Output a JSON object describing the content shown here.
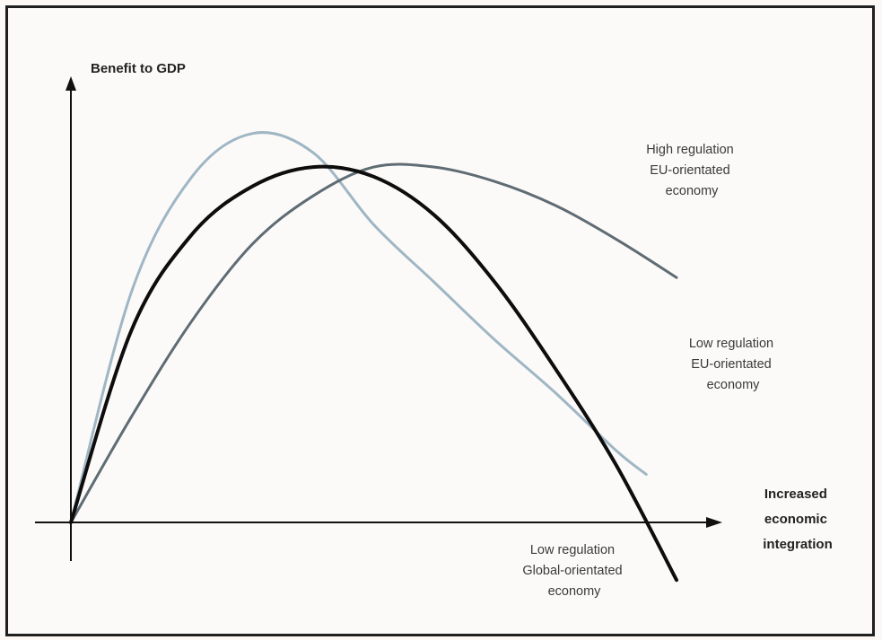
{
  "chart_data": {
    "type": "line",
    "ylabel": "Benefit to GDP",
    "xlabel_lines": [
      "Increased",
      "economic",
      "integration"
    ],
    "axis_ticks": "none",
    "grid": false,
    "legend": "none",
    "x_range": [
      0,
      100
    ],
    "y_range": [
      -12,
      90
    ],
    "series": [
      {
        "annotation_lines": [
          "Low regulation",
          "EU-orientated",
          "economy"
        ],
        "color": "#9fb6c4",
        "width": 3,
        "x": [
          0,
          10,
          20,
          30,
          40,
          50,
          60,
          70,
          80,
          90,
          95
        ],
        "y": [
          0,
          48,
          72,
          81,
          77,
          62,
          50,
          38,
          27,
          15,
          10
        ]
      },
      {
        "annotation_lines": [
          "High regulation",
          "EU-orientated",
          "economy"
        ],
        "color": "#5f6c74",
        "width": 3,
        "x": [
          0,
          10,
          20,
          30,
          40,
          50,
          60,
          70,
          80,
          90,
          100
        ],
        "y": [
          0,
          22,
          42,
          58,
          68,
          74,
          74,
          71,
          66,
          59,
          51
        ]
      },
      {
        "annotation_lines": [
          "Low regulation",
          "Global-orientated",
          "economy"
        ],
        "color": "#0d0d0d",
        "width": 4,
        "x": [
          0,
          10,
          20,
          30,
          40,
          50,
          60,
          70,
          80,
          90,
          100
        ],
        "y": [
          0,
          40,
          60,
          70,
          74,
          72,
          64,
          50,
          32,
          12,
          -12
        ]
      }
    ]
  }
}
